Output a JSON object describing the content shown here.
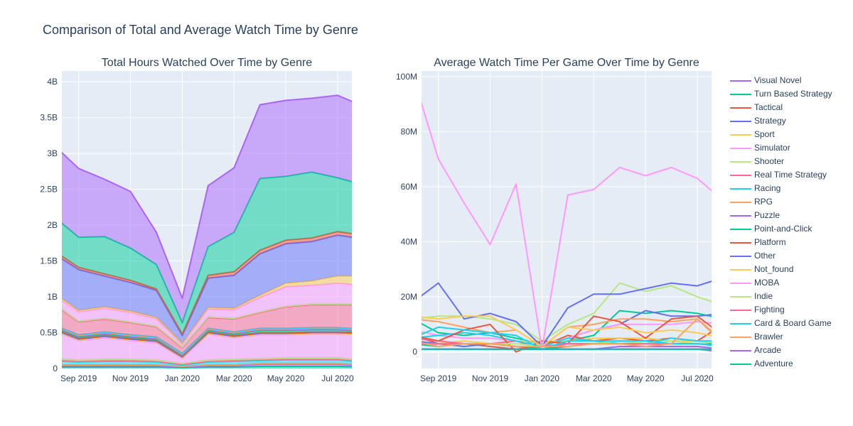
{
  "title": "Comparison of Total and Average Watch Time by Genre",
  "genres": [
    "Visual Novel",
    "Turn Based Strategy",
    "Tactical",
    "Strategy",
    "Sport",
    "Simulator",
    "Shooter",
    "Real Time Strategy",
    "Racing",
    "RPG",
    "Puzzle",
    "Point-and-Click",
    "Platform",
    "Other",
    "Not_found",
    "MOBA",
    "Indie",
    "Fighting",
    "Card & Board Game",
    "Brawler",
    "Arcade",
    "Adventure"
  ],
  "colors": {
    "Adventure": "#00cc96",
    "Arcade": "#ab63fa",
    "Brawler": "#ffa15a",
    "Card & Board Game": "#19d3f3",
    "Fighting": "#ff6692",
    "Indie": "#b6e880",
    "MOBA": "#ff97ff",
    "Not_found": "#fecb52",
    "Other": "#636efa",
    "Platform": "#ef553b",
    "Point-and-Click": "#00cc96",
    "Puzzle": "#ab63fa",
    "RPG": "#ffa15a",
    "Racing": "#19d3f3",
    "Real Time Strategy": "#ff6692",
    "Shooter": "#b6e880",
    "Simulator": "#ff97ff",
    "Sport": "#fecb52",
    "Strategy": "#636efa",
    "Tactical": "#ef553b",
    "Turn Based Strategy": "#00cc96",
    "Visual Novel": "#ab63fa"
  },
  "chart_data": [
    {
      "type": "area",
      "title": "Total Hours Watched Over Time by Genre",
      "x": [
        "2019-08",
        "2019-09",
        "2019-10",
        "2019-11",
        "2019-12",
        "2020-01",
        "2020-02",
        "2020-03",
        "2020-04",
        "2020-05",
        "2020-06",
        "2020-07",
        "2020-08"
      ],
      "xticks": [
        "Sep 2019",
        "Nov 2019",
        "Jan 2020",
        "Mar 2020",
        "May 2020",
        "Jul 2020"
      ],
      "yticks": [
        "0",
        "0.5B",
        "1B",
        "1.5B",
        "2B",
        "2.5B",
        "3B",
        "3.5B",
        "4B"
      ],
      "ylim": [
        0,
        4.15
      ],
      "yunit": "B",
      "series": [
        {
          "name": "Adventure",
          "values": [
            0.02,
            0.02,
            0.02,
            0.02,
            0.02,
            0.01,
            0.02,
            0.02,
            0.03,
            0.03,
            0.03,
            0.03,
            0.02
          ]
        },
        {
          "name": "Arcade",
          "values": [
            0.02,
            0.02,
            0.02,
            0.02,
            0.02,
            0.01,
            0.02,
            0.02,
            0.03,
            0.03,
            0.03,
            0.03,
            0.02
          ]
        },
        {
          "name": "Brawler",
          "values": [
            0.01,
            0.01,
            0.01,
            0.01,
            0.01,
            0.01,
            0.01,
            0.01,
            0.01,
            0.01,
            0.01,
            0.01,
            0.01
          ]
        },
        {
          "name": "Card & Board Game",
          "values": [
            0.06,
            0.04,
            0.05,
            0.05,
            0.04,
            0.02,
            0.04,
            0.05,
            0.04,
            0.05,
            0.05,
            0.05,
            0.04
          ]
        },
        {
          "name": "Fighting",
          "values": [
            0.01,
            0.01,
            0.01,
            0.01,
            0.01,
            0.01,
            0.01,
            0.01,
            0.01,
            0.01,
            0.01,
            0.01,
            0.01
          ]
        },
        {
          "name": "Indie",
          "values": [
            0.02,
            0.02,
            0.02,
            0.02,
            0.02,
            0.01,
            0.02,
            0.02,
            0.02,
            0.02,
            0.02,
            0.02,
            0.02
          ]
        },
        {
          "name": "MOBA",
          "values": [
            0.39,
            0.27,
            0.3,
            0.26,
            0.24,
            0.07,
            0.36,
            0.3,
            0.33,
            0.32,
            0.33,
            0.33,
            0.35
          ]
        },
        {
          "name": "Not_found",
          "values": [
            0.01,
            0.01,
            0.01,
            0.01,
            0.01,
            0.01,
            0.01,
            0.01,
            0.01,
            0.01,
            0.01,
            0.01,
            0.01
          ]
        },
        {
          "name": "Other",
          "values": [
            0.01,
            0.01,
            0.01,
            0.01,
            0.01,
            0.01,
            0.01,
            0.01,
            0.01,
            0.01,
            0.01,
            0.01,
            0.01
          ]
        },
        {
          "name": "Platform",
          "values": [
            0.01,
            0.01,
            0.01,
            0.01,
            0.01,
            0.01,
            0.01,
            0.01,
            0.01,
            0.01,
            0.01,
            0.01,
            0.01
          ]
        },
        {
          "name": "Point-and-Click",
          "values": [
            0.02,
            0.02,
            0.02,
            0.02,
            0.02,
            0.01,
            0.02,
            0.02,
            0.03,
            0.03,
            0.03,
            0.03,
            0.02
          ]
        },
        {
          "name": "Puzzle",
          "values": [
            0.01,
            0.01,
            0.01,
            0.01,
            0.01,
            0.01,
            0.01,
            0.01,
            0.01,
            0.01,
            0.01,
            0.01,
            0.01
          ]
        },
        {
          "name": "RPG",
          "values": [
            0.01,
            0.01,
            0.01,
            0.01,
            0.01,
            0.01,
            0.01,
            0.01,
            0.01,
            0.01,
            0.01,
            0.01,
            0.01
          ]
        },
        {
          "name": "Racing",
          "values": [
            0.01,
            0.01,
            0.01,
            0.01,
            0.01,
            0.01,
            0.01,
            0.01,
            0.01,
            0.01,
            0.01,
            0.01,
            0.01
          ]
        },
        {
          "name": "Real Time Strategy",
          "values": [
            0.3,
            0.18,
            0.18,
            0.17,
            0.14,
            0.08,
            0.15,
            0.18,
            0.22,
            0.3,
            0.32,
            0.32,
            0.34
          ]
        },
        {
          "name": "Shooter",
          "values": [
            0.01,
            0.01,
            0.01,
            0.01,
            0.01,
            0.01,
            0.01,
            0.01,
            0.01,
            0.01,
            0.01,
            0.01,
            0.01
          ]
        },
        {
          "name": "Simulator",
          "values": [
            0.11,
            0.13,
            0.14,
            0.13,
            0.1,
            0.04,
            0.11,
            0.12,
            0.2,
            0.27,
            0.26,
            0.29,
            0.26
          ]
        },
        {
          "name": "Sport",
          "values": [
            0.03,
            0.02,
            0.02,
            0.02,
            0.02,
            0.01,
            0.02,
            0.02,
            0.03,
            0.05,
            0.06,
            0.1,
            0.13
          ]
        },
        {
          "name": "Strategy",
          "values": [
            0.55,
            0.57,
            0.43,
            0.4,
            0.38,
            0.11,
            0.41,
            0.46,
            0.58,
            0.55,
            0.55,
            0.57,
            0.52
          ]
        },
        {
          "name": "Tactical",
          "values": [
            0.04,
            0.03,
            0.03,
            0.03,
            0.02,
            0.02,
            0.04,
            0.05,
            0.05,
            0.05,
            0.05,
            0.05,
            0.05
          ]
        },
        {
          "name": "Turn Based Strategy",
          "values": [
            0.48,
            0.42,
            0.52,
            0.45,
            0.34,
            0.16,
            0.4,
            0.55,
            1.0,
            0.89,
            0.92,
            0.75,
            0.7
          ]
        },
        {
          "name": "Visual Novel",
          "values": [
            1.0,
            0.96,
            0.8,
            0.79,
            0.45,
            0.34,
            0.85,
            0.9,
            1.03,
            1.06,
            1.03,
            1.15,
            1.1
          ]
        }
      ]
    },
    {
      "type": "line",
      "title": "Average Watch Time Per Game Over Time by Genre",
      "x": [
        "2019-08",
        "2019-09",
        "2019-10",
        "2019-11",
        "2019-12",
        "2020-01",
        "2020-02",
        "2020-03",
        "2020-04",
        "2020-05",
        "2020-06",
        "2020-07",
        "2020-08"
      ],
      "xticks": [
        "Sep 2019",
        "Nov 2019",
        "Jan 2020",
        "Mar 2020",
        "May 2020",
        "Jul 2020"
      ],
      "yticks": [
        "0",
        "20M",
        "40M",
        "60M",
        "80M",
        "100M"
      ],
      "ylim": [
        -6,
        102
      ],
      "yunit": "M",
      "series": [
        {
          "name": "Visual Novel",
          "values": [
            1,
            1,
            1,
            1,
            1,
            1,
            1,
            1,
            1,
            1,
            1,
            1,
            1
          ]
        },
        {
          "name": "Turn Based Strategy",
          "values": [
            12,
            7,
            6,
            7,
            5,
            3,
            4,
            6,
            15,
            14,
            15,
            14,
            12
          ]
        },
        {
          "name": "Tactical",
          "values": [
            6,
            3,
            3,
            2,
            1,
            2,
            6,
            4,
            5,
            4,
            5,
            4,
            10
          ]
        },
        {
          "name": "Strategy",
          "values": [
            4,
            3,
            2,
            3,
            2,
            2,
            5,
            8,
            10,
            15,
            13,
            13,
            14
          ]
        },
        {
          "name": "Sport",
          "values": [
            3,
            3,
            4,
            3,
            4,
            4,
            4,
            5,
            5,
            5,
            4,
            4,
            3
          ]
        },
        {
          "name": "Simulator",
          "values": [
            8,
            6,
            5,
            5,
            4,
            2,
            5,
            8,
            10,
            10,
            10,
            11,
            10
          ]
        },
        {
          "name": "Shooter",
          "values": [
            12,
            13,
            13,
            12,
            10,
            4,
            10,
            14,
            25,
            22,
            24,
            20,
            17
          ]
        },
        {
          "name": "Real Time Strategy",
          "values": [
            5,
            4,
            3,
            3,
            4,
            1,
            3,
            3,
            3,
            3,
            3,
            3,
            3
          ]
        },
        {
          "name": "Racing",
          "values": [
            5,
            6,
            7,
            6,
            4,
            2,
            5,
            4,
            3,
            3,
            5,
            4,
            4
          ]
        },
        {
          "name": "RPG",
          "values": [
            12,
            11,
            9,
            7,
            8,
            2,
            9,
            10,
            12,
            12,
            11,
            12,
            4
          ]
        },
        {
          "name": "Puzzle",
          "values": [
            1,
            1,
            1,
            1,
            1,
            1,
            1,
            1,
            2,
            2,
            2,
            2,
            1
          ]
        },
        {
          "name": "Point-and-Click",
          "values": [
            3,
            2,
            3,
            3,
            2,
            1,
            2,
            3,
            4,
            3,
            3,
            3,
            3
          ]
        },
        {
          "name": "Platform",
          "values": [
            6,
            4,
            8,
            10,
            0,
            4,
            3,
            13,
            11,
            5,
            12,
            13,
            6
          ]
        },
        {
          "name": "Other",
          "values": [
            18,
            25,
            12,
            14,
            11,
            2,
            16,
            21,
            21,
            23,
            25,
            24,
            27
          ]
        },
        {
          "name": "Not_found",
          "values": [
            13,
            12,
            13,
            13,
            8,
            2,
            9,
            8,
            9,
            7,
            8,
            7,
            5
          ]
        },
        {
          "name": "MOBA",
          "values": [
            101,
            70,
            54,
            39,
            61,
            1,
            57,
            59,
            67,
            64,
            67,
            63,
            55
          ]
        },
        {
          "name": "Indie",
          "values": [
            3,
            3,
            3,
            3,
            3,
            2,
            3,
            3,
            4,
            3,
            4,
            3,
            4
          ]
        },
        {
          "name": "Fighting",
          "values": [
            3,
            3,
            3,
            3,
            2,
            2,
            3,
            3,
            3,
            3,
            3,
            3,
            2
          ]
        },
        {
          "name": "Card & Board Game",
          "values": [
            5,
            9,
            8,
            7,
            6,
            1,
            4,
            4,
            4,
            4,
            3,
            3,
            2
          ]
        },
        {
          "name": "Brawler",
          "values": [
            4,
            2,
            3,
            3,
            2,
            2,
            2,
            3,
            3,
            2,
            3,
            12,
            3
          ]
        },
        {
          "name": "Arcade",
          "values": [
            1,
            1,
            1,
            1,
            1,
            1,
            1,
            1,
            1,
            1,
            1,
            1,
            0
          ]
        },
        {
          "name": "Adventure",
          "values": [
            1,
            1,
            1,
            1,
            1,
            1,
            1,
            1,
            1,
            1,
            1,
            1,
            1
          ]
        }
      ]
    }
  ]
}
